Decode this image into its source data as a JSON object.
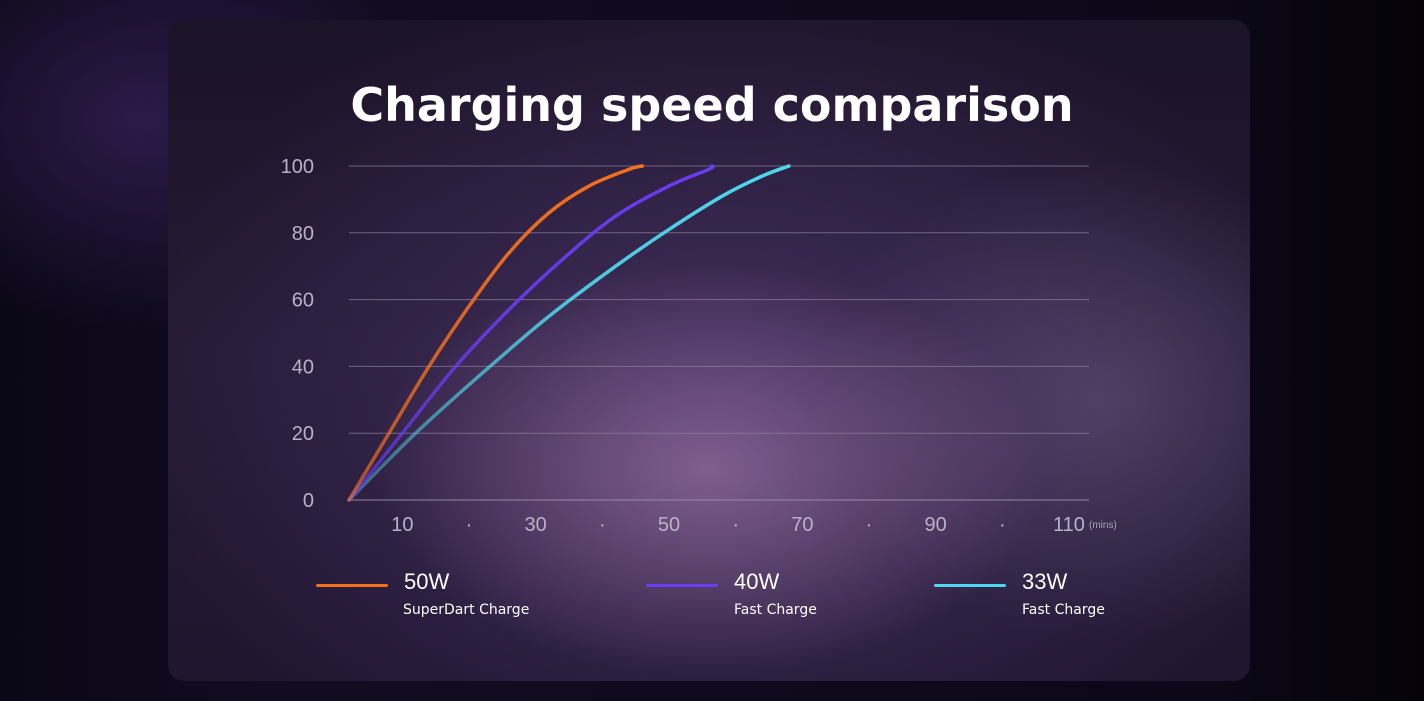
{
  "title": "Charging speed comparison",
  "chart_data": {
    "type": "line",
    "title": "Charging speed comparison",
    "x_unit": "(mins)",
    "x_tick_labels": [
      "10",
      "·",
      "30",
      "·",
      "50",
      "·",
      "70",
      "·",
      "90",
      "·",
      "110"
    ],
    "x_tick_values": [
      10,
      20,
      30,
      40,
      50,
      60,
      70,
      80,
      90,
      100,
      110
    ],
    "y_ticks": [
      0,
      20,
      40,
      60,
      80,
      100
    ],
    "xlim": [
      2,
      113
    ],
    "ylim": [
      0,
      100
    ],
    "grid": true,
    "series": [
      {
        "name": "50W",
        "description": "SuperDart Charge",
        "color": "#f5701e",
        "x": [
          2,
          8,
          14,
          20,
          26,
          32,
          38,
          44,
          46
        ],
        "y": [
          0,
          20,
          40,
          58,
          74,
          86,
          94,
          99,
          100
        ]
      },
      {
        "name": "40W",
        "description": "Fast Charge",
        "color": "#6a3cf2",
        "x": [
          2,
          10,
          18,
          26,
          34,
          42,
          50,
          56,
          56.5
        ],
        "y": [
          0,
          20,
          40,
          57,
          72,
          85,
          94,
          99,
          100
        ]
      },
      {
        "name": "33W",
        "description": "Fast Charge",
        "color": "#4fd8ec",
        "x": [
          2,
          12,
          22,
          32,
          42,
          50,
          58,
          64,
          68
        ],
        "y": [
          0,
          20,
          38,
          55,
          70,
          81,
          91,
          97,
          100
        ]
      }
    ]
  }
}
